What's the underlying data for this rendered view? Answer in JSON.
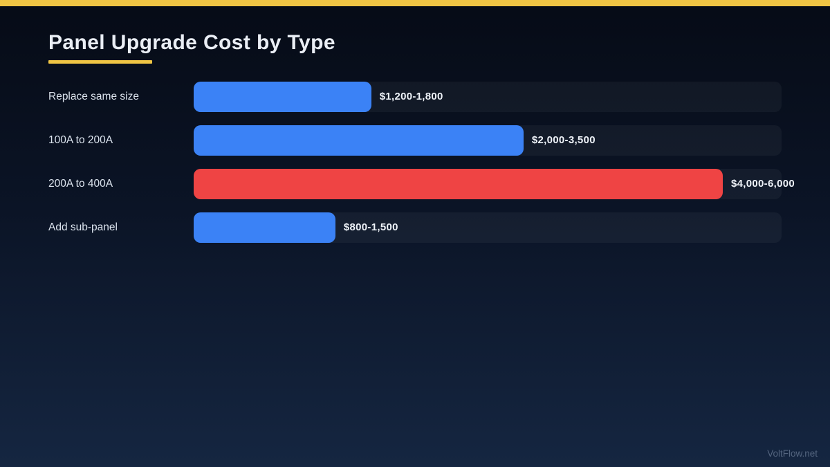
{
  "page": {
    "title": "Panel Upgrade Cost by Type",
    "watermark": "VoltFlow.net",
    "accent_color": "#f0c544",
    "background_top": "#060b16",
    "background_bottom": "#152641"
  },
  "chart_data": {
    "type": "bar",
    "orientation": "horizontal",
    "title": "Panel Upgrade Cost by Type",
    "value_unit": "USD",
    "legend": "none",
    "axes_visible": false,
    "grid": false,
    "track_color": "rgba(255,255,255,0.045)",
    "categories": [
      "Replace same size",
      "100A to 200A",
      "200A to 400A",
      "Add sub-panel"
    ],
    "values_min": [
      1200,
      2000,
      4000,
      800
    ],
    "values_max": [
      1800,
      3500,
      6000,
      1500
    ],
    "value_labels": [
      "$1,200-1,800",
      "$2,000-3,500",
      "$4,000-6,000",
      "$800-1,500"
    ],
    "highlight_category": "200A to 400A",
    "default_bar_color": "#3b82f6",
    "highlight_bar_color": "#ef4444",
    "rows": [
      {
        "label": "Replace same size",
        "value_label": "$1,200-1,800",
        "min": 1200,
        "max": 1800,
        "color": "#3b82f6",
        "width_pct": 30.2
      },
      {
        "label": "100A to 200A",
        "value_label": "$2,000-3,500",
        "min": 2000,
        "max": 3500,
        "color": "#3b82f6",
        "width_pct": 56.1
      },
      {
        "label": "200A to 400A",
        "value_label": "$4,000-6,000",
        "min": 4000,
        "max": 6000,
        "color": "#ef4444",
        "width_pct": 90.0
      },
      {
        "label": "Add sub-panel",
        "value_label": "$800-1,500",
        "min": 800,
        "max": 1500,
        "color": "#3b82f6",
        "width_pct": 24.1
      }
    ]
  }
}
